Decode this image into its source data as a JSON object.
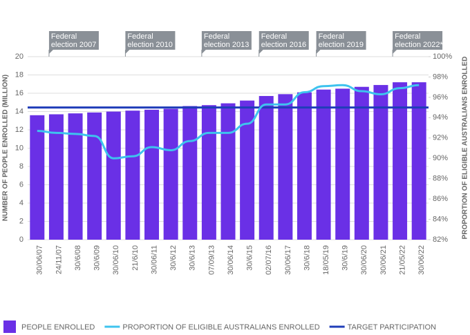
{
  "chart_data": {
    "type": "bar-line",
    "categories": [
      "30/06/07",
      "24/11/07",
      "30/6/08",
      "30/6/09",
      "30/06/10",
      "21/6/10",
      "30/06/11",
      "30/6/12",
      "30/6/13",
      "07/09/13",
      "30/06/14",
      "30/6/15",
      "02/07/16",
      "30/06/17",
      "30/6/18",
      "18/05/19",
      "30/6/19",
      "30/06/20",
      "30/06/21",
      "21/05/22",
      "30/06/22"
    ],
    "series": [
      {
        "name": "PEOPLE ENROLLED",
        "type": "bar",
        "color": "#6a30e6",
        "values": [
          13.6,
          13.7,
          13.8,
          13.9,
          14.0,
          14.1,
          14.2,
          14.3,
          14.6,
          14.7,
          14.9,
          15.2,
          15.7,
          15.9,
          16.1,
          16.4,
          16.5,
          16.7,
          16.9,
          17.2,
          17.2
        ]
      },
      {
        "name": "PROPORTION OF ELIGIBLE AUSTRALIANS ENROLLED",
        "type": "line",
        "axis": "y2",
        "color": "#3ec3ee",
        "values": [
          92.7,
          92.5,
          92.4,
          92.2,
          90.0,
          90.2,
          91.1,
          90.8,
          91.7,
          92.5,
          92.5,
          93.4,
          95.3,
          95.3,
          96.5,
          97.1,
          97.2,
          96.6,
          96.3,
          96.9,
          97.2
        ]
      },
      {
        "name": "TARGET PARTICIPATION",
        "type": "hline",
        "axis": "y2",
        "color": "#1f3db8",
        "value": 95
      }
    ],
    "ylabel": "NUMBER OF PEOPLE ENROLLED (MILLION)",
    "y2label": "PROPORTION OF ELIGIBLE AUSTRALIANS ENROLLED",
    "ylim": [
      0,
      20
    ],
    "yticks": [
      0,
      2,
      4,
      6,
      8,
      10,
      12,
      14,
      16,
      18,
      20
    ],
    "y2lim": [
      82,
      100
    ],
    "y2ticks": [
      {
        "value": 82,
        "label": "82%"
      },
      {
        "value": 84,
        "label": "84%"
      },
      {
        "value": 86,
        "label": "86%"
      },
      {
        "value": 88,
        "label": "88%"
      },
      {
        "value": 90,
        "label": "90%"
      },
      {
        "value": 92,
        "label": "92%"
      },
      {
        "value": 94,
        "label": "94%"
      },
      {
        "value": 96,
        "label": "96%"
      },
      {
        "value": 98,
        "label": "98%"
      },
      {
        "value": 100,
        "label": "100%"
      }
    ],
    "grid": true,
    "annotations": [
      {
        "lines": [
          "Federal",
          "election 2007"
        ],
        "category": 1
      },
      {
        "lines": [
          "Federal",
          "election 2010"
        ],
        "category": 5
      },
      {
        "lines": [
          "Federal",
          "election 2013"
        ],
        "category": 9
      },
      {
        "lines": [
          "Federal",
          "election 2016"
        ],
        "category": 12
      },
      {
        "lines": [
          "Federal",
          "election 2019"
        ],
        "category": 15
      },
      {
        "lines": [
          "Federal",
          "election 2022*"
        ],
        "category": 19
      }
    ]
  }
}
